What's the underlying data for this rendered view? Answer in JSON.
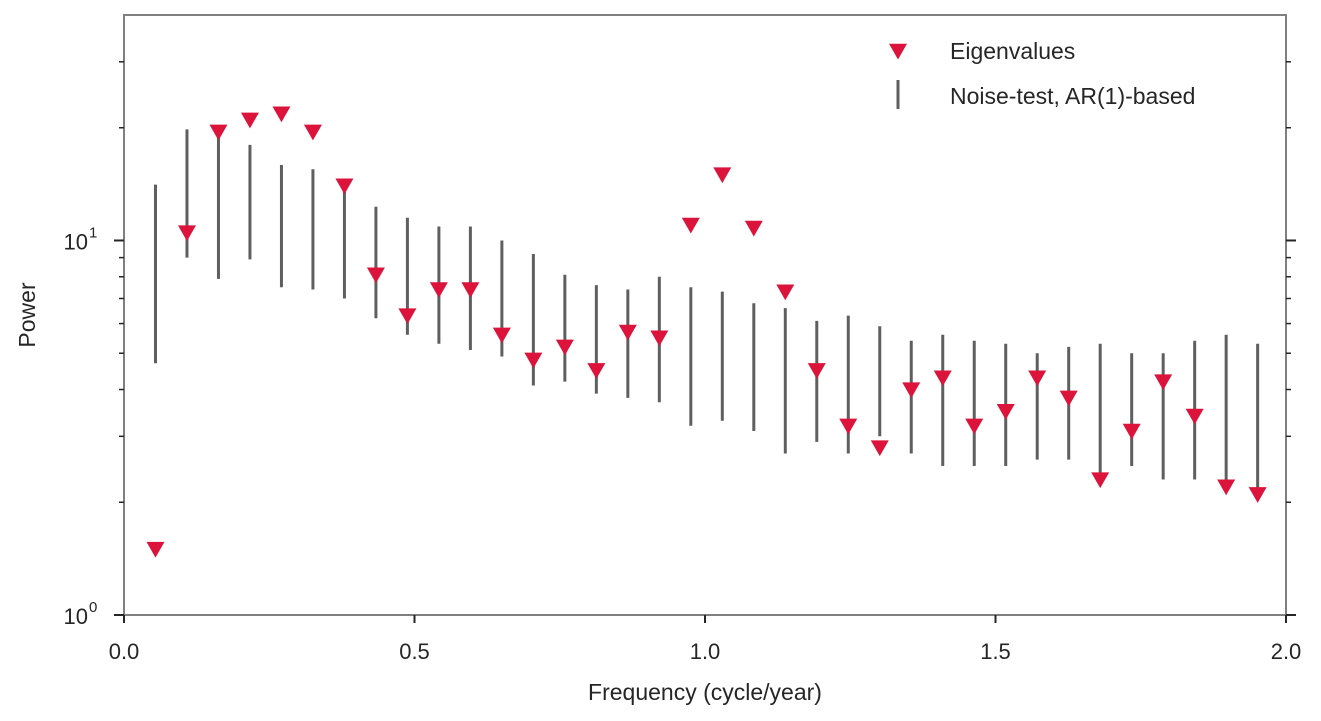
{
  "chart_data": {
    "type": "scatter",
    "xlabel": "Frequency (cycle/year)",
    "ylabel": "Power",
    "xlim": [
      0.0,
      2.0
    ],
    "ylim": [
      1,
      40
    ],
    "yscale": "log",
    "grid": false,
    "legend_position": "top-right",
    "x_ticks": [
      {
        "value": 0.0,
        "label": "0.0"
      },
      {
        "value": 0.5,
        "label": "0.5"
      },
      {
        "value": 1.0,
        "label": "1.0"
      },
      {
        "value": 1.5,
        "label": "1.5"
      },
      {
        "value": 2.0,
        "label": "2.0"
      }
    ],
    "y_ticks": [
      {
        "value": 1,
        "base": "10",
        "exp": "0"
      },
      {
        "value": 10,
        "base": "10",
        "exp": "1"
      }
    ],
    "colors": {
      "eigenvalues": "#dc143c",
      "noise": "#5f5f5f",
      "axes": "#808080"
    },
    "series": [
      {
        "name": "Eigenvalues",
        "kind": "marker",
        "marker": "triangle-down",
        "x": [
          0.0542,
          0.1084,
          0.1626,
          0.2168,
          0.271,
          0.3252,
          0.3794,
          0.4336,
          0.4878,
          0.542,
          0.5962,
          0.6504,
          0.7046,
          0.7588,
          0.813,
          0.8672,
          0.9214,
          0.9756,
          1.0298,
          1.084,
          1.1382,
          1.1924,
          1.2466,
          1.3008,
          1.355,
          1.4092,
          1.4634,
          1.5176,
          1.5718,
          1.626,
          1.6802,
          1.7344,
          1.7886,
          1.8428,
          1.897,
          1.9512
        ],
        "y": [
          1.5,
          10.5,
          19.5,
          21.0,
          21.8,
          19.5,
          14.0,
          8.1,
          6.3,
          7.4,
          7.4,
          5.6,
          4.8,
          5.2,
          4.5,
          5.7,
          5.5,
          11.0,
          15.0,
          10.8,
          7.3,
          4.5,
          3.2,
          2.8,
          4.0,
          4.3,
          3.2,
          3.5,
          4.3,
          3.8,
          2.3,
          3.1,
          4.2,
          3.4,
          2.2,
          2.1
        ]
      },
      {
        "name": "Noise-test, AR(1)-based",
        "kind": "interval",
        "x": [
          0.0542,
          0.1084,
          0.1626,
          0.2168,
          0.271,
          0.3252,
          0.3794,
          0.4336,
          0.4878,
          0.542,
          0.5962,
          0.6504,
          0.7046,
          0.7588,
          0.813,
          0.8672,
          0.9214,
          0.9756,
          1.0298,
          1.084,
          1.1382,
          1.1924,
          1.2466,
          1.3008,
          1.355,
          1.4092,
          1.4634,
          1.5176,
          1.5718,
          1.626,
          1.6802,
          1.7344,
          1.7886,
          1.8428,
          1.897,
          1.9512
        ],
        "low": [
          4.7,
          9.0,
          7.9,
          8.9,
          7.5,
          7.4,
          7.0,
          6.2,
          5.6,
          5.3,
          5.1,
          4.9,
          4.1,
          4.2,
          3.9,
          3.8,
          3.7,
          3.2,
          3.3,
          3.1,
          2.7,
          2.9,
          2.7,
          3.0,
          2.7,
          2.5,
          2.5,
          2.5,
          2.6,
          2.6,
          2.3,
          2.5,
          2.3,
          2.3,
          2.2,
          2.1
        ],
        "high": [
          14.1,
          19.8,
          19.5,
          18.0,
          15.9,
          15.5,
          13.9,
          12.3,
          11.5,
          10.9,
          10.9,
          10.0,
          9.2,
          8.1,
          7.6,
          7.4,
          8.0,
          7.5,
          7.3,
          6.8,
          6.6,
          6.1,
          6.3,
          5.9,
          5.4,
          5.6,
          5.4,
          5.3,
          5.0,
          5.2,
          5.3,
          5.0,
          5.0,
          5.4,
          5.6,
          5.3
        ]
      }
    ]
  }
}
